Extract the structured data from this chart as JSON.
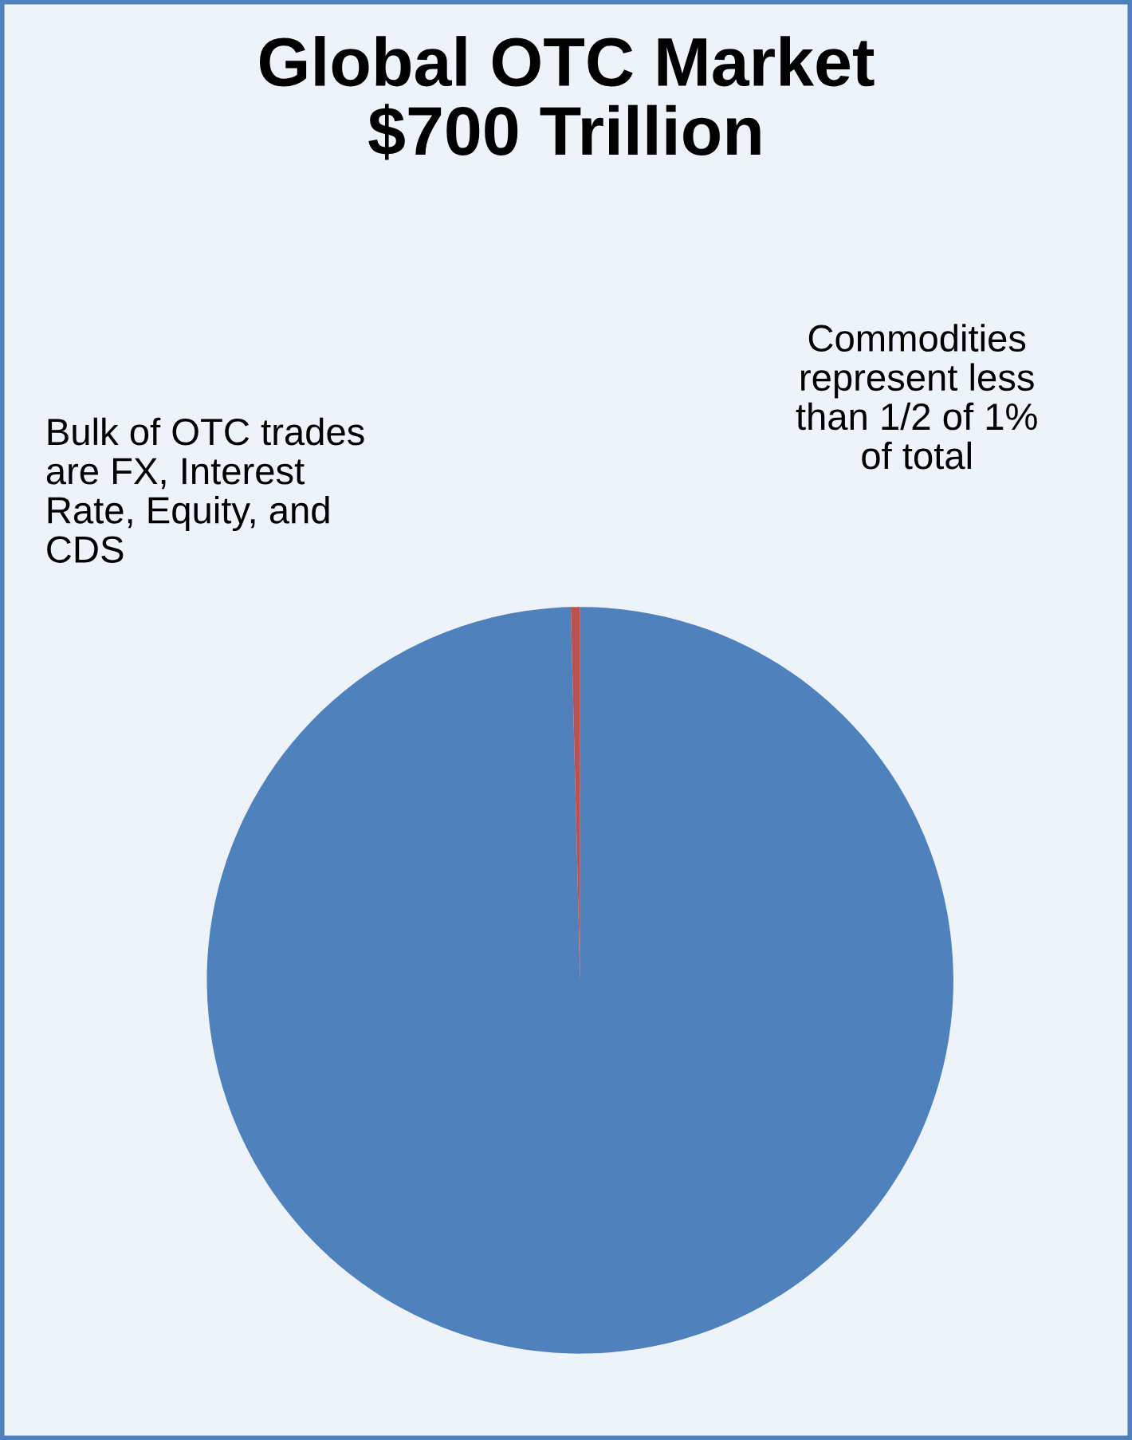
{
  "chart_data": {
    "type": "pie",
    "title": "Global OTC Market\n$700 Trillion",
    "categories": [
      null,
      null
    ],
    "values": [
      99.6,
      0.4
    ],
    "colors": [
      "#4f81bd",
      "#c0504d"
    ],
    "annotations": [
      "Bulk of OTC trades\nare FX, Interest\nRate, Equity, and\nCDS",
      "Commodities\nrepresent less\nthan 1/2 of 1%\nof total"
    ]
  }
}
